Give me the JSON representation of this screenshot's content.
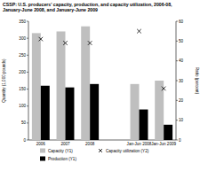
{
  "chart_data": {
    "type": "bar",
    "title": "CSSP: U.S. producers' capacity, production, and capacity utilization, 2006-08, January-June 2008, and January-June 2009",
    "y_label": "Quantity (1,000 pounds)",
    "y2_label": "Ratio (percent)",
    "categories": [
      "2006",
      "2007",
      "2008",
      null,
      "Jan-Jun 2008",
      "Jan-Jun 2009"
    ],
    "series": [
      {
        "name": "Capacity (Y1)",
        "type": "bar",
        "color": "#bfbfbf",
        "values": [
          315,
          320,
          335,
          null,
          165,
          175
        ]
      },
      {
        "name": "Capacity utilization (Y2)",
        "type": "scatter",
        "marker": "x",
        "color": "#000000",
        "axis": "y2",
        "values": [
          51,
          49,
          49,
          null,
          55,
          26
        ]
      },
      {
        "name": "Production (Y1)",
        "type": "bar",
        "color": "#000000",
        "values": [
          160,
          155,
          165,
          null,
          90,
          45
        ]
      }
    ],
    "ylim": [
      0,
      350
    ],
    "yticks": [
      0,
      50,
      100,
      150,
      200,
      250,
      300,
      350
    ],
    "y2lim": [
      0,
      60
    ],
    "y2ticks": [
      0,
      10,
      20,
      30,
      40,
      50,
      60
    ],
    "legend": "bottom",
    "grid": false
  }
}
